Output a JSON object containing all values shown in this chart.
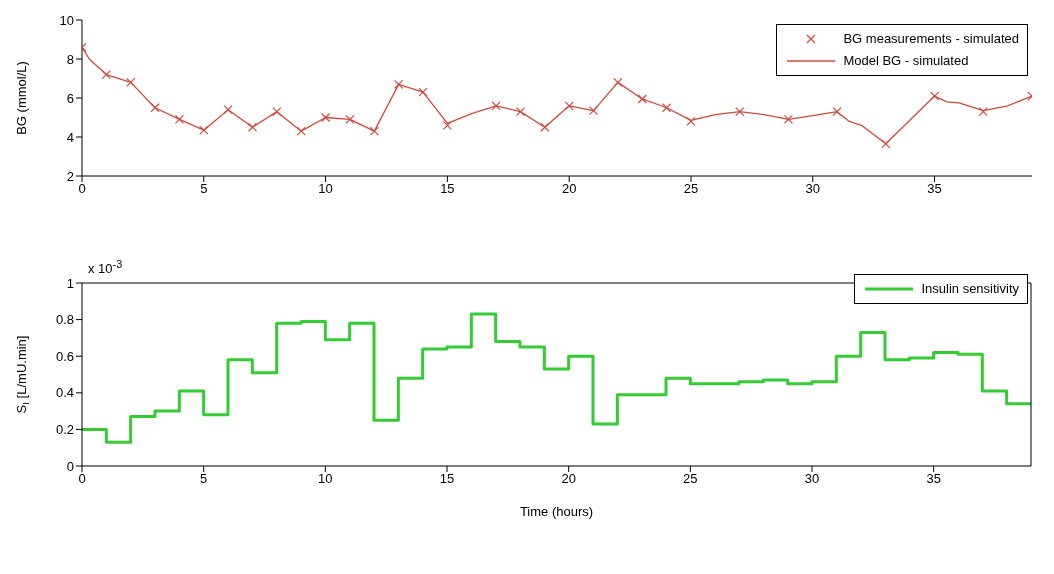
{
  "chart_data": [
    {
      "type": "line",
      "ylabel": "BG (mmol/L)",
      "xlim": [
        0,
        39
      ],
      "xticks": [
        0,
        5,
        10,
        15,
        20,
        25,
        30,
        35
      ],
      "ylim": [
        2,
        10
      ],
      "yticks": [
        2,
        4,
        6,
        8,
        10
      ],
      "legend": "top right",
      "series": [
        {
          "name": "BG measurements - simulated",
          "type": "scatter",
          "marker": "cross",
          "color": "#d2483c",
          "x": [
            0,
            1,
            2,
            3,
            4,
            5,
            6,
            7,
            8,
            9,
            10,
            11,
            12,
            13,
            14,
            15,
            17,
            18,
            19,
            20,
            21,
            22,
            23,
            24,
            25,
            27,
            29,
            31,
            33,
            35,
            37,
            39
          ],
          "values": [
            8.6,
            7.2,
            6.8,
            5.5,
            4.9,
            4.35,
            5.4,
            4.5,
            5.3,
            4.3,
            5.0,
            4.9,
            4.3,
            6.7,
            6.3,
            4.6,
            5.6,
            5.3,
            4.5,
            5.6,
            5.35,
            6.8,
            5.95,
            5.5,
            4.8,
            5.3,
            4.9,
            5.3,
            3.65,
            6.1,
            5.3,
            6.1
          ]
        },
        {
          "name": "Model BG - simulated",
          "type": "line",
          "marker": "none",
          "line_style": "solid",
          "color": "#d2483c",
          "x": [
            0,
            0.3,
            1,
            2,
            3,
            4,
            5,
            6,
            7,
            8,
            9,
            10,
            11,
            12,
            13,
            14,
            15,
            16,
            17,
            18,
            19,
            20,
            21,
            22,
            23,
            24,
            25,
            26,
            27,
            28,
            29,
            30,
            31,
            31.5,
            32,
            33,
            35,
            35.5,
            36,
            37,
            38,
            39
          ],
          "values": [
            8.6,
            8.0,
            7.2,
            6.8,
            5.5,
            4.9,
            4.35,
            5.4,
            4.5,
            5.3,
            4.3,
            5.0,
            4.9,
            4.3,
            6.7,
            6.3,
            4.7,
            5.2,
            5.6,
            5.3,
            4.5,
            5.6,
            5.35,
            6.8,
            5.95,
            5.5,
            4.85,
            5.15,
            5.3,
            5.15,
            4.9,
            5.1,
            5.3,
            4.8,
            4.6,
            3.65,
            6.1,
            5.8,
            5.75,
            5.35,
            5.6,
            6.1
          ]
        }
      ]
    },
    {
      "type": "step",
      "xlabel": "Time (hours)",
      "ylabel": "S$_{I}$ [L/mU.min]",
      "annotations": [
        "x 10$^{-3}$"
      ],
      "xlim": [
        0,
        39
      ],
      "xticks": [
        0,
        5,
        10,
        15,
        20,
        25,
        30,
        35
      ],
      "ylim": [
        0,
        1
      ],
      "yticks": [
        0,
        0.2,
        0.4,
        0.6,
        0.8,
        1
      ],
      "legend": "top right",
      "series": [
        {
          "name": "Insulin sensitivity",
          "color": "#33cc33",
          "marker": "none",
          "line_style": "solid",
          "x": [
            0,
            1,
            2,
            3,
            4,
            5,
            6,
            7,
            8,
            9,
            10,
            11,
            12,
            13,
            14,
            15,
            16,
            17,
            18,
            19,
            20,
            21,
            22,
            23,
            24,
            25,
            26,
            27,
            28,
            29,
            30,
            31,
            32,
            33,
            34,
            35,
            36,
            37,
            38,
            39
          ],
          "values": [
            0.2,
            0.13,
            0.27,
            0.3,
            0.41,
            0.28,
            0.58,
            0.51,
            0.78,
            0.79,
            0.69,
            0.78,
            0.25,
            0.48,
            0.64,
            0.65,
            0.83,
            0.68,
            0.65,
            0.53,
            0.6,
            0.23,
            0.39,
            0.39,
            0.48,
            0.45,
            0.45,
            0.46,
            0.47,
            0.45,
            0.46,
            0.6,
            0.73,
            0.58,
            0.59,
            0.62,
            0.61,
            0.41,
            0.34,
            0.34
          ]
        }
      ]
    }
  ]
}
